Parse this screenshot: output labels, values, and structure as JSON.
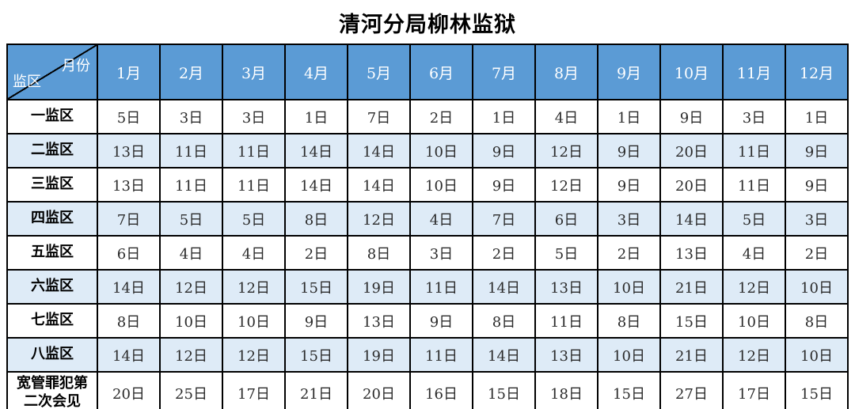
{
  "title": "清河分局柳林监狱",
  "table": {
    "corner": {
      "top_right": "月份",
      "bottom_left": "监区"
    },
    "months": [
      "1月",
      "2月",
      "3月",
      "4月",
      "5月",
      "6月",
      "7月",
      "8月",
      "9月",
      "10月",
      "11月",
      "12月"
    ],
    "rows": [
      {
        "label": "一监区",
        "values": [
          "5日",
          "3日",
          "3日",
          "1日",
          "7日",
          "2日",
          "1日",
          "4日",
          "1日",
          "9日",
          "3日",
          "1日"
        ]
      },
      {
        "label": "二监区",
        "values": [
          "13日",
          "11日",
          "11日",
          "14日",
          "14日",
          "10日",
          "9日",
          "12日",
          "9日",
          "20日",
          "11日",
          "9日"
        ]
      },
      {
        "label": "三监区",
        "values": [
          "13日",
          "11日",
          "11日",
          "14日",
          "14日",
          "10日",
          "9日",
          "12日",
          "9日",
          "20日",
          "11日",
          "9日"
        ]
      },
      {
        "label": "四监区",
        "values": [
          "7日",
          "5日",
          "5日",
          "8日",
          "12日",
          "4日",
          "7日",
          "6日",
          "3日",
          "14日",
          "5日",
          "3日"
        ]
      },
      {
        "label": "五监区",
        "values": [
          "6日",
          "4日",
          "4日",
          "2日",
          "8日",
          "3日",
          "2日",
          "5日",
          "2日",
          "13日",
          "4日",
          "2日"
        ]
      },
      {
        "label": "六监区",
        "values": [
          "14日",
          "12日",
          "12日",
          "15日",
          "19日",
          "11日",
          "14日",
          "13日",
          "10日",
          "21日",
          "12日",
          "10日"
        ]
      },
      {
        "label": "七监区",
        "values": [
          "8日",
          "10日",
          "10日",
          "9日",
          "13日",
          "9日",
          "8日",
          "11日",
          "8日",
          "15日",
          "10日",
          "8日"
        ]
      },
      {
        "label": "八监区",
        "values": [
          "14日",
          "12日",
          "12日",
          "15日",
          "19日",
          "11日",
          "14日",
          "13日",
          "10日",
          "21日",
          "12日",
          "10日"
        ]
      },
      {
        "label": "宽管罪犯第二次会见",
        "values": [
          "20日",
          "25日",
          "17日",
          "21日",
          "20日",
          "16日",
          "15日",
          "18日",
          "15日",
          "27日",
          "17日",
          "15日"
        ]
      }
    ],
    "colors": {
      "header_bg": "#5B9BD5",
      "alt_row_bg": "#DEEBF7",
      "row_bg": "#FFFFFF",
      "border": "#000000",
      "header_text": "#FFFFFF",
      "body_text": "#2B2B2B"
    }
  }
}
